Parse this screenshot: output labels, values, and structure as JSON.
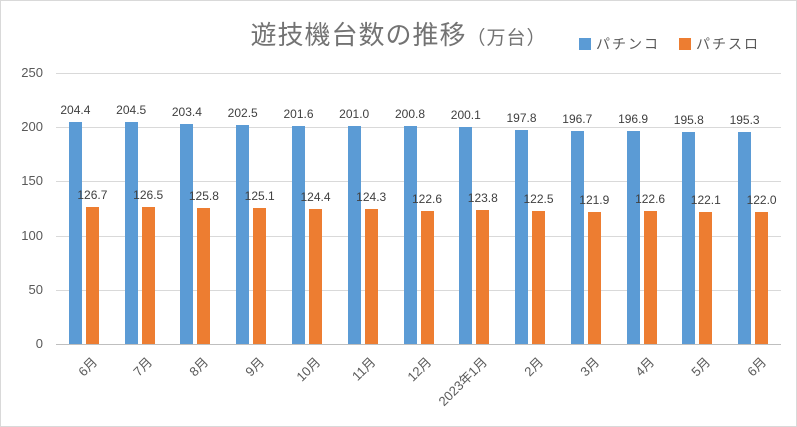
{
  "title": {
    "main": "遊技機台数の推移",
    "unit": "（万台）"
  },
  "legend": [
    {
      "label": "パチンコ",
      "color": "#5B9BD5"
    },
    {
      "label": "パチスロ",
      "color": "#ED7D31"
    }
  ],
  "chart_data": {
    "type": "bar",
    "title": "遊技機台数の推移（万台）",
    "categories": [
      "6月",
      "7月",
      "8月",
      "9月",
      "10月",
      "11月",
      "12月",
      "2023年1月",
      "2月",
      "3月",
      "4月",
      "5月",
      "6月"
    ],
    "series": [
      {
        "name": "パチンコ",
        "color": "#5B9BD5",
        "values": [
          204.4,
          204.5,
          203.4,
          202.5,
          201.6,
          201.0,
          200.8,
          200.1,
          197.8,
          196.7,
          196.9,
          195.8,
          195.3
        ]
      },
      {
        "name": "パチスロ",
        "color": "#ED7D31",
        "values": [
          126.7,
          126.5,
          125.8,
          125.1,
          124.4,
          124.3,
          122.6,
          123.8,
          122.5,
          121.9,
          122.6,
          122.1,
          122.0
        ]
      }
    ],
    "xlabel": "",
    "ylabel": "",
    "ylim": [
      0,
      250
    ],
    "yticks": [
      0,
      50,
      100,
      150,
      200,
      250
    ],
    "grid": true,
    "legend_position": "top-right",
    "data_labels": true,
    "gridline_color": "#D9D9D9",
    "axis_line_color": "#BFBFBF",
    "label_color": "#404040",
    "tick_color": "#595959"
  }
}
